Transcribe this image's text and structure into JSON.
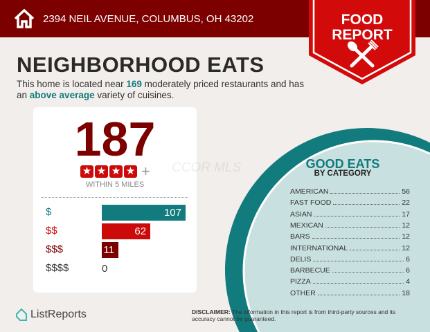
{
  "header": {
    "address": "2394 NEIL AVENUE, COLUMBUS, OH 43202",
    "badge_line1": "FOOD",
    "badge_line2": "REPORT",
    "icons": [
      "home-icon",
      "fork-spoon-icon"
    ]
  },
  "title": "NEIGHBORHOOD EATS",
  "subtitle": {
    "part1": "This home is located near ",
    "count": "169",
    "part2": " moderately priced restaurants and has an ",
    "highlight": "above average",
    "part3": " variety of cuisines."
  },
  "summary": {
    "total": "187",
    "rating_stars": 4,
    "rating_suffix": "+",
    "within": "WITHIN 5 MILES"
  },
  "price_levels": [
    {
      "label": "$",
      "value": 107,
      "color": "#127b7e"
    },
    {
      "label": "$$",
      "value": 62,
      "color": "#cc0a0a"
    },
    {
      "label": "$$$",
      "value": 11,
      "color": "#7d0000"
    },
    {
      "label": "$$$$",
      "value": 0,
      "color": "#333333"
    }
  ],
  "categories": {
    "title": "GOOD EATS",
    "subtitle": "BY CATEGORY",
    "items": [
      {
        "name": "AMERICAN",
        "count": "56"
      },
      {
        "name": "FAST FOOD",
        "count": "22"
      },
      {
        "name": "ASIAN",
        "count": "17"
      },
      {
        "name": "MEXICAN",
        "count": "12"
      },
      {
        "name": "BARS",
        "count": "12"
      },
      {
        "name": "INTERNATIONAL",
        "count": "12"
      },
      {
        "name": "DELIS",
        "count": "6"
      },
      {
        "name": "BARBECUE",
        "count": "6"
      },
      {
        "name": "PIZZA",
        "count": "4"
      },
      {
        "name": "OTHER",
        "count": "18"
      }
    ]
  },
  "watermark": "CCOR MLS",
  "footer": {
    "logo": "ListReports",
    "disclaimer_label": "DISCLAIMER:",
    "disclaimer": " The information in this report is from third-party sources and its accuracy cannot be guaranteed."
  }
}
